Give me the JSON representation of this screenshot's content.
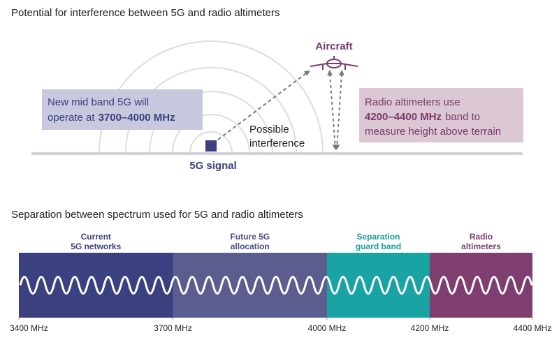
{
  "interference": {
    "title": "Potential for interference between 5G and radio altimeters",
    "signal_label": "5G signal",
    "aircraft_label": "Aircraft",
    "interference_lines": [
      "Possible",
      "interference"
    ],
    "callout_5g": {
      "line1": "New mid band 5G will",
      "line2_prefix": "operate at",
      "line2_bold": "3700–4000 MHz"
    },
    "callout_altimeter": {
      "line1": "Radio altimeters use",
      "line2_bold": "4200–4400 MHz",
      "line2_suffix": "band to",
      "line3": "measure height above terrain"
    }
  },
  "spectrum": {
    "title": "Separation between spectrum used for 5G and radio altimeters",
    "xlim": [
      3400,
      4400
    ],
    "ticks": [
      {
        "value": 3400,
        "label": "3400 MHz"
      },
      {
        "value": 3700,
        "label": "3700 MHz"
      },
      {
        "value": 4000,
        "label": "4000 MHz"
      },
      {
        "value": 4200,
        "label": "4200 MHz"
      },
      {
        "value": 4400,
        "label": "4400 MHz"
      }
    ],
    "bands": [
      {
        "lines": [
          "Current",
          "5G networks"
        ],
        "start": 3400,
        "end": 3700,
        "color": "#3b4080",
        "label_color": "#3b4080"
      },
      {
        "lines": [
          "Future 5G",
          "allocation"
        ],
        "start": 3700,
        "end": 4000,
        "color": "#5b5d8f",
        "label_color": "#4a4c88"
      },
      {
        "lines": [
          "Separation",
          "guard band"
        ],
        "start": 4000,
        "end": 4200,
        "color": "#1aa3a3",
        "label_color": "#1a9c9c"
      },
      {
        "lines": [
          "Radio",
          "altimeters"
        ],
        "start": 4200,
        "end": 4400,
        "color": "#7e3e70",
        "label_color": "#7e3e70"
      }
    ]
  }
}
